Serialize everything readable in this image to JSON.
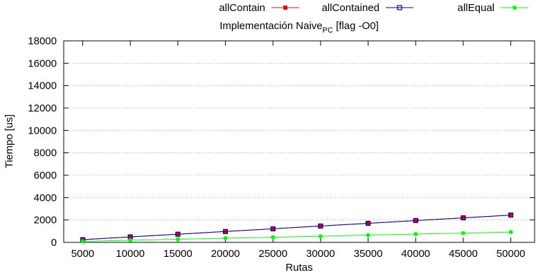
{
  "chart_data": {
    "type": "line",
    "title_main": "Implementación Naive",
    "title_sub": "PC",
    "title_tail": " [flag -O0]",
    "xlabel": "Rutas",
    "ylabel": "Tiempo [us]",
    "x": [
      5000,
      10000,
      15000,
      20000,
      25000,
      30000,
      35000,
      40000,
      45000,
      50000
    ],
    "xlim": [
      3000,
      52500
    ],
    "ylim": [
      0,
      18000
    ],
    "yticks": [
      0,
      2000,
      4000,
      6000,
      8000,
      10000,
      12000,
      14000,
      16000,
      18000
    ],
    "grid": true,
    "legend_position": "top",
    "series": [
      {
        "name": "allContain",
        "color": "#ff0000",
        "marker": "filled-square",
        "values": [
          240,
          490,
          730,
          970,
          1210,
          1460,
          1700,
          1950,
          2190,
          2440
        ]
      },
      {
        "name": "allContained",
        "color": "#0000a0",
        "marker": "open-square",
        "values": [
          240,
          490,
          730,
          970,
          1210,
          1460,
          1700,
          1950,
          2190,
          2440
        ]
      },
      {
        "name": "allEqual",
        "color": "#00ff00",
        "marker": "filled-circle",
        "values": [
          90,
          190,
          280,
          370,
          460,
          550,
          650,
          740,
          830,
          920
        ]
      }
    ]
  }
}
